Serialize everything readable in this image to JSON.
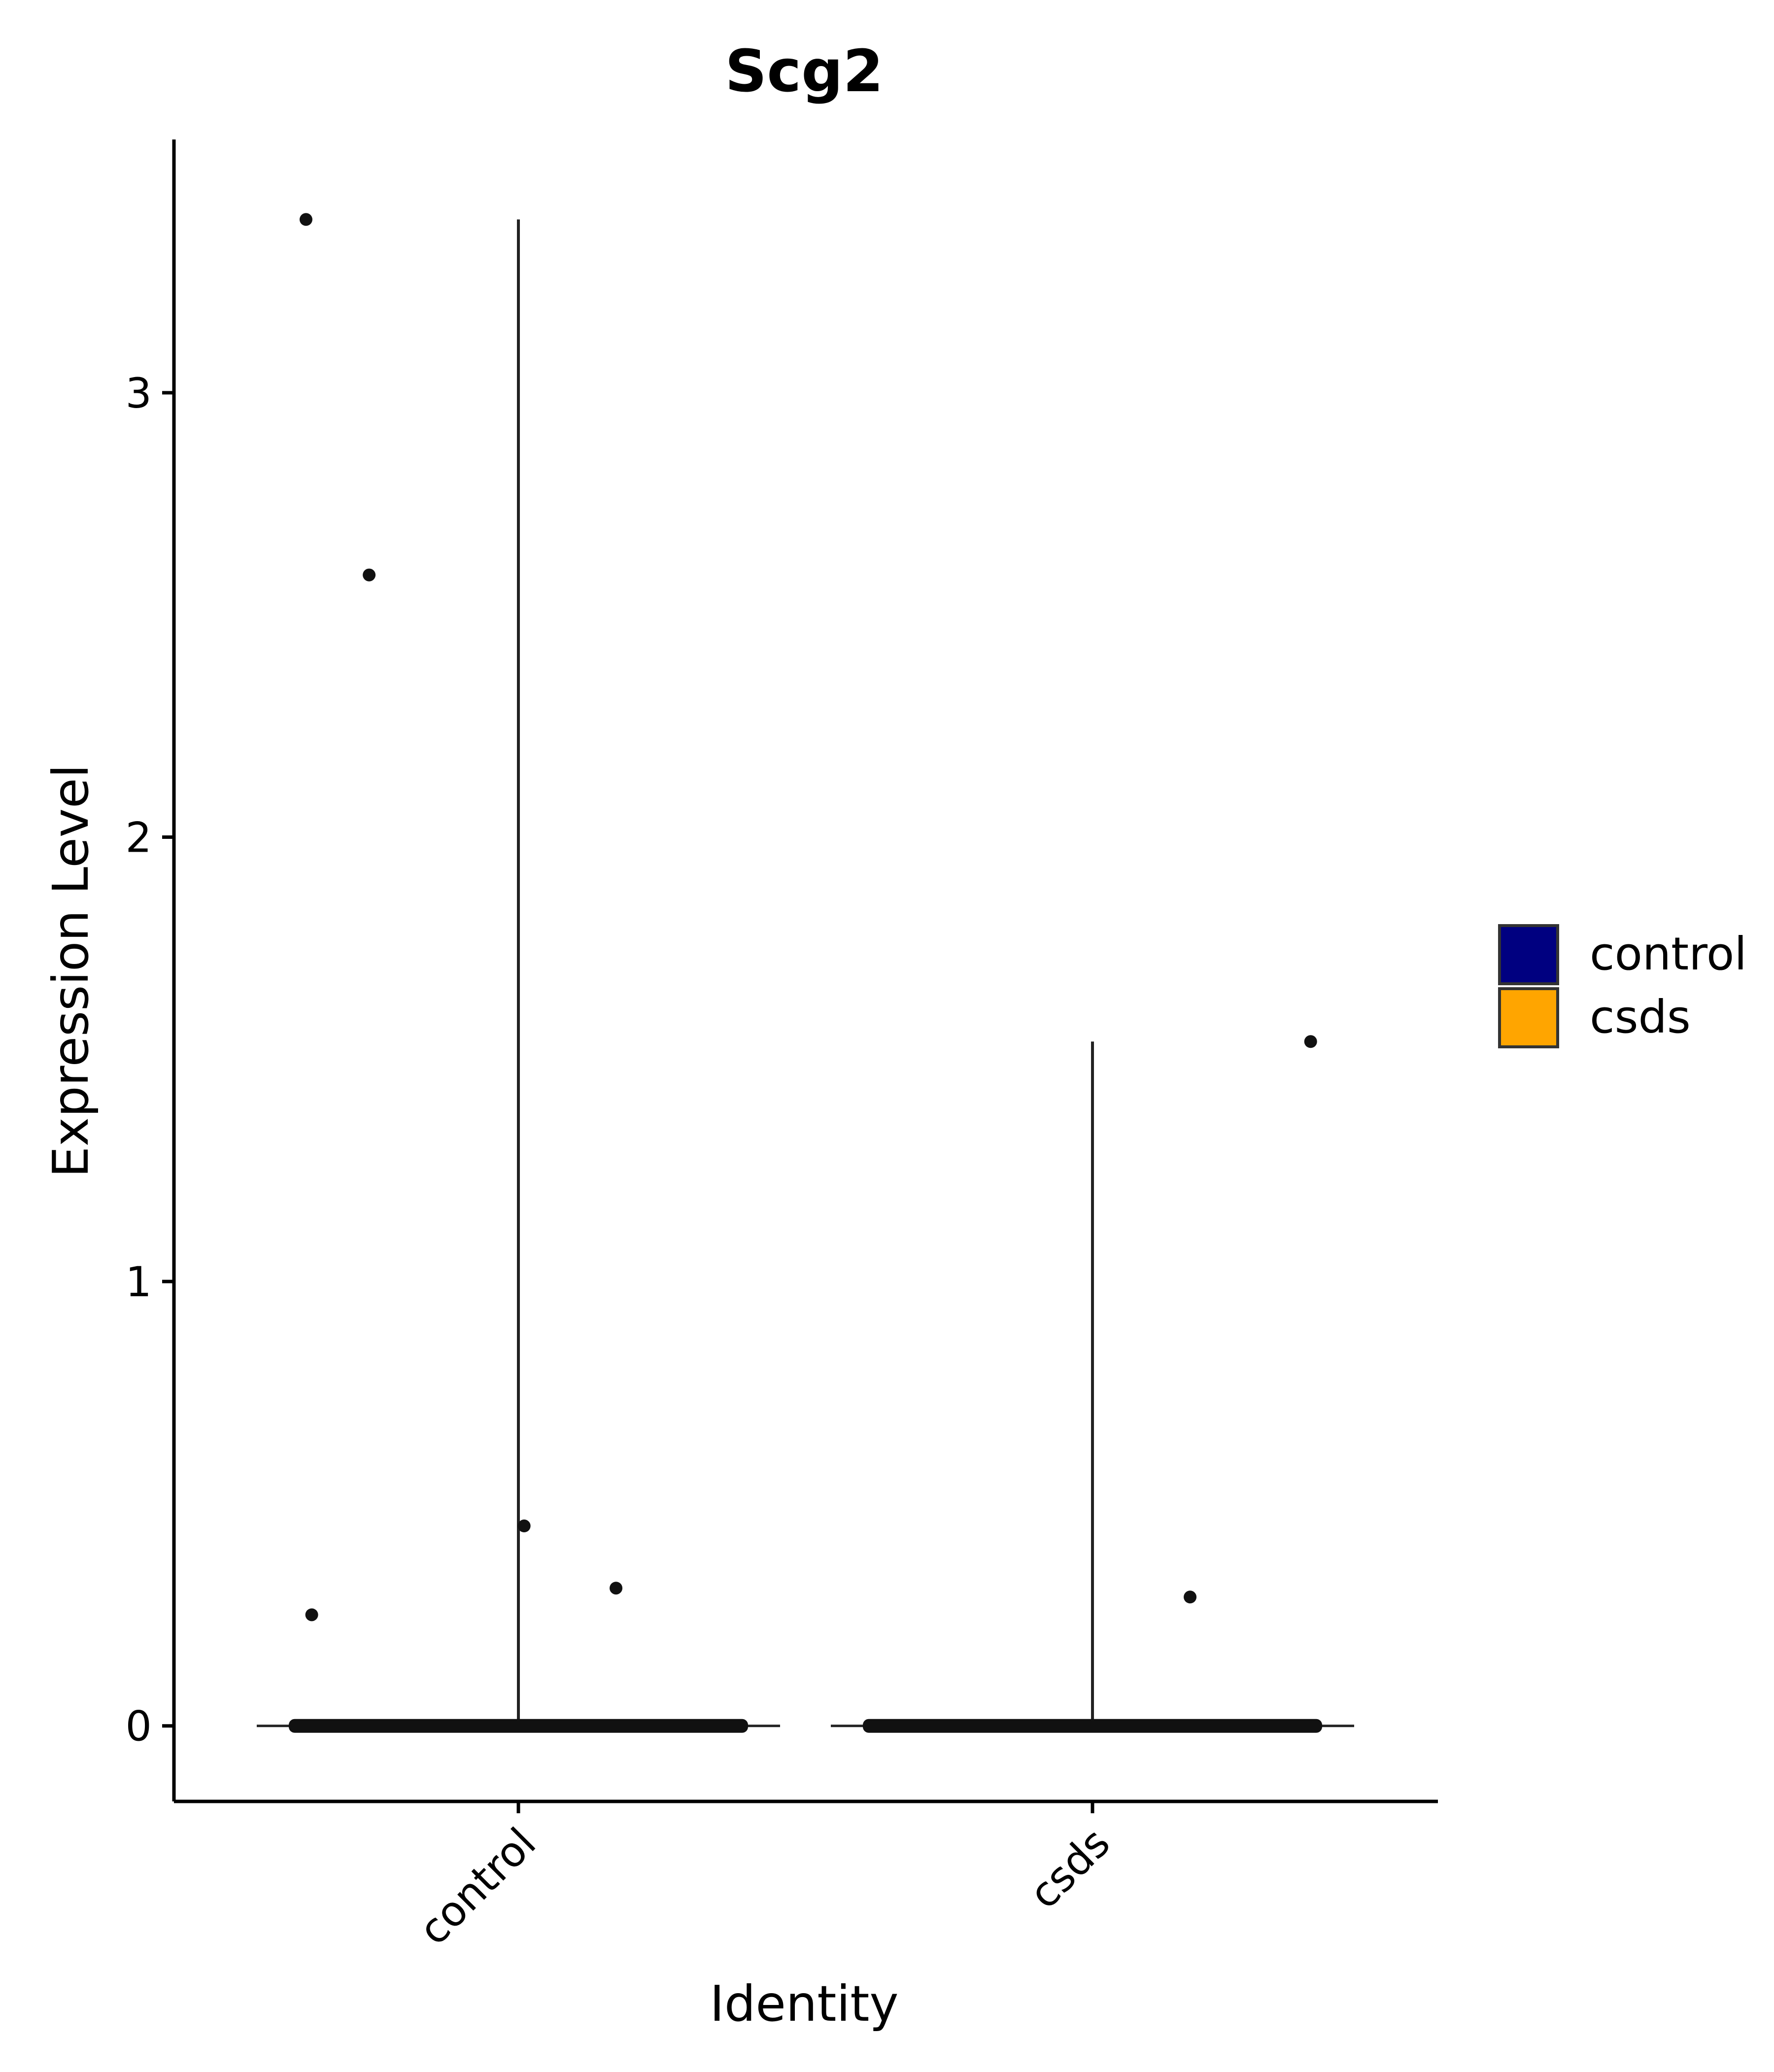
{
  "chart_data": {
    "type": "violin",
    "title": "Scg2",
    "xlabel": "Identity",
    "ylabel": "Expression Level",
    "categories": [
      "control",
      "csds"
    ],
    "ylim": [
      -0.17,
      3.57
    ],
    "yticks": [
      0,
      1,
      2,
      3
    ],
    "ytick_labels": [
      "0",
      "1",
      "2",
      "3"
    ],
    "grid": false,
    "legend": {
      "position": "right",
      "entries": [
        {
          "label": "control",
          "color": "#000080"
        },
        {
          "label": "csds",
          "color": "#FFA500"
        }
      ]
    },
    "series": [
      {
        "name": "control",
        "color": "#000080",
        "max": 3.39,
        "outlier_points": [
          {
            "x": -0.37,
            "y": 3.39
          },
          {
            "x": -0.26,
            "y": 2.59
          },
          {
            "x": -0.36,
            "y": 0.25
          },
          {
            "x": 0.01,
            "y": 0.45
          },
          {
            "x": 0.17,
            "y": 0.31
          }
        ]
      },
      {
        "name": "csds",
        "color": "#FFA500",
        "max": 1.54,
        "outlier_points": [
          {
            "x": 0.17,
            "y": 0.29
          },
          {
            "x": 0.38,
            "y": 1.54
          }
        ]
      }
    ],
    "zero_band_halfwidth": 0.4,
    "point_color": "#111111",
    "axis_color": "#000000"
  }
}
